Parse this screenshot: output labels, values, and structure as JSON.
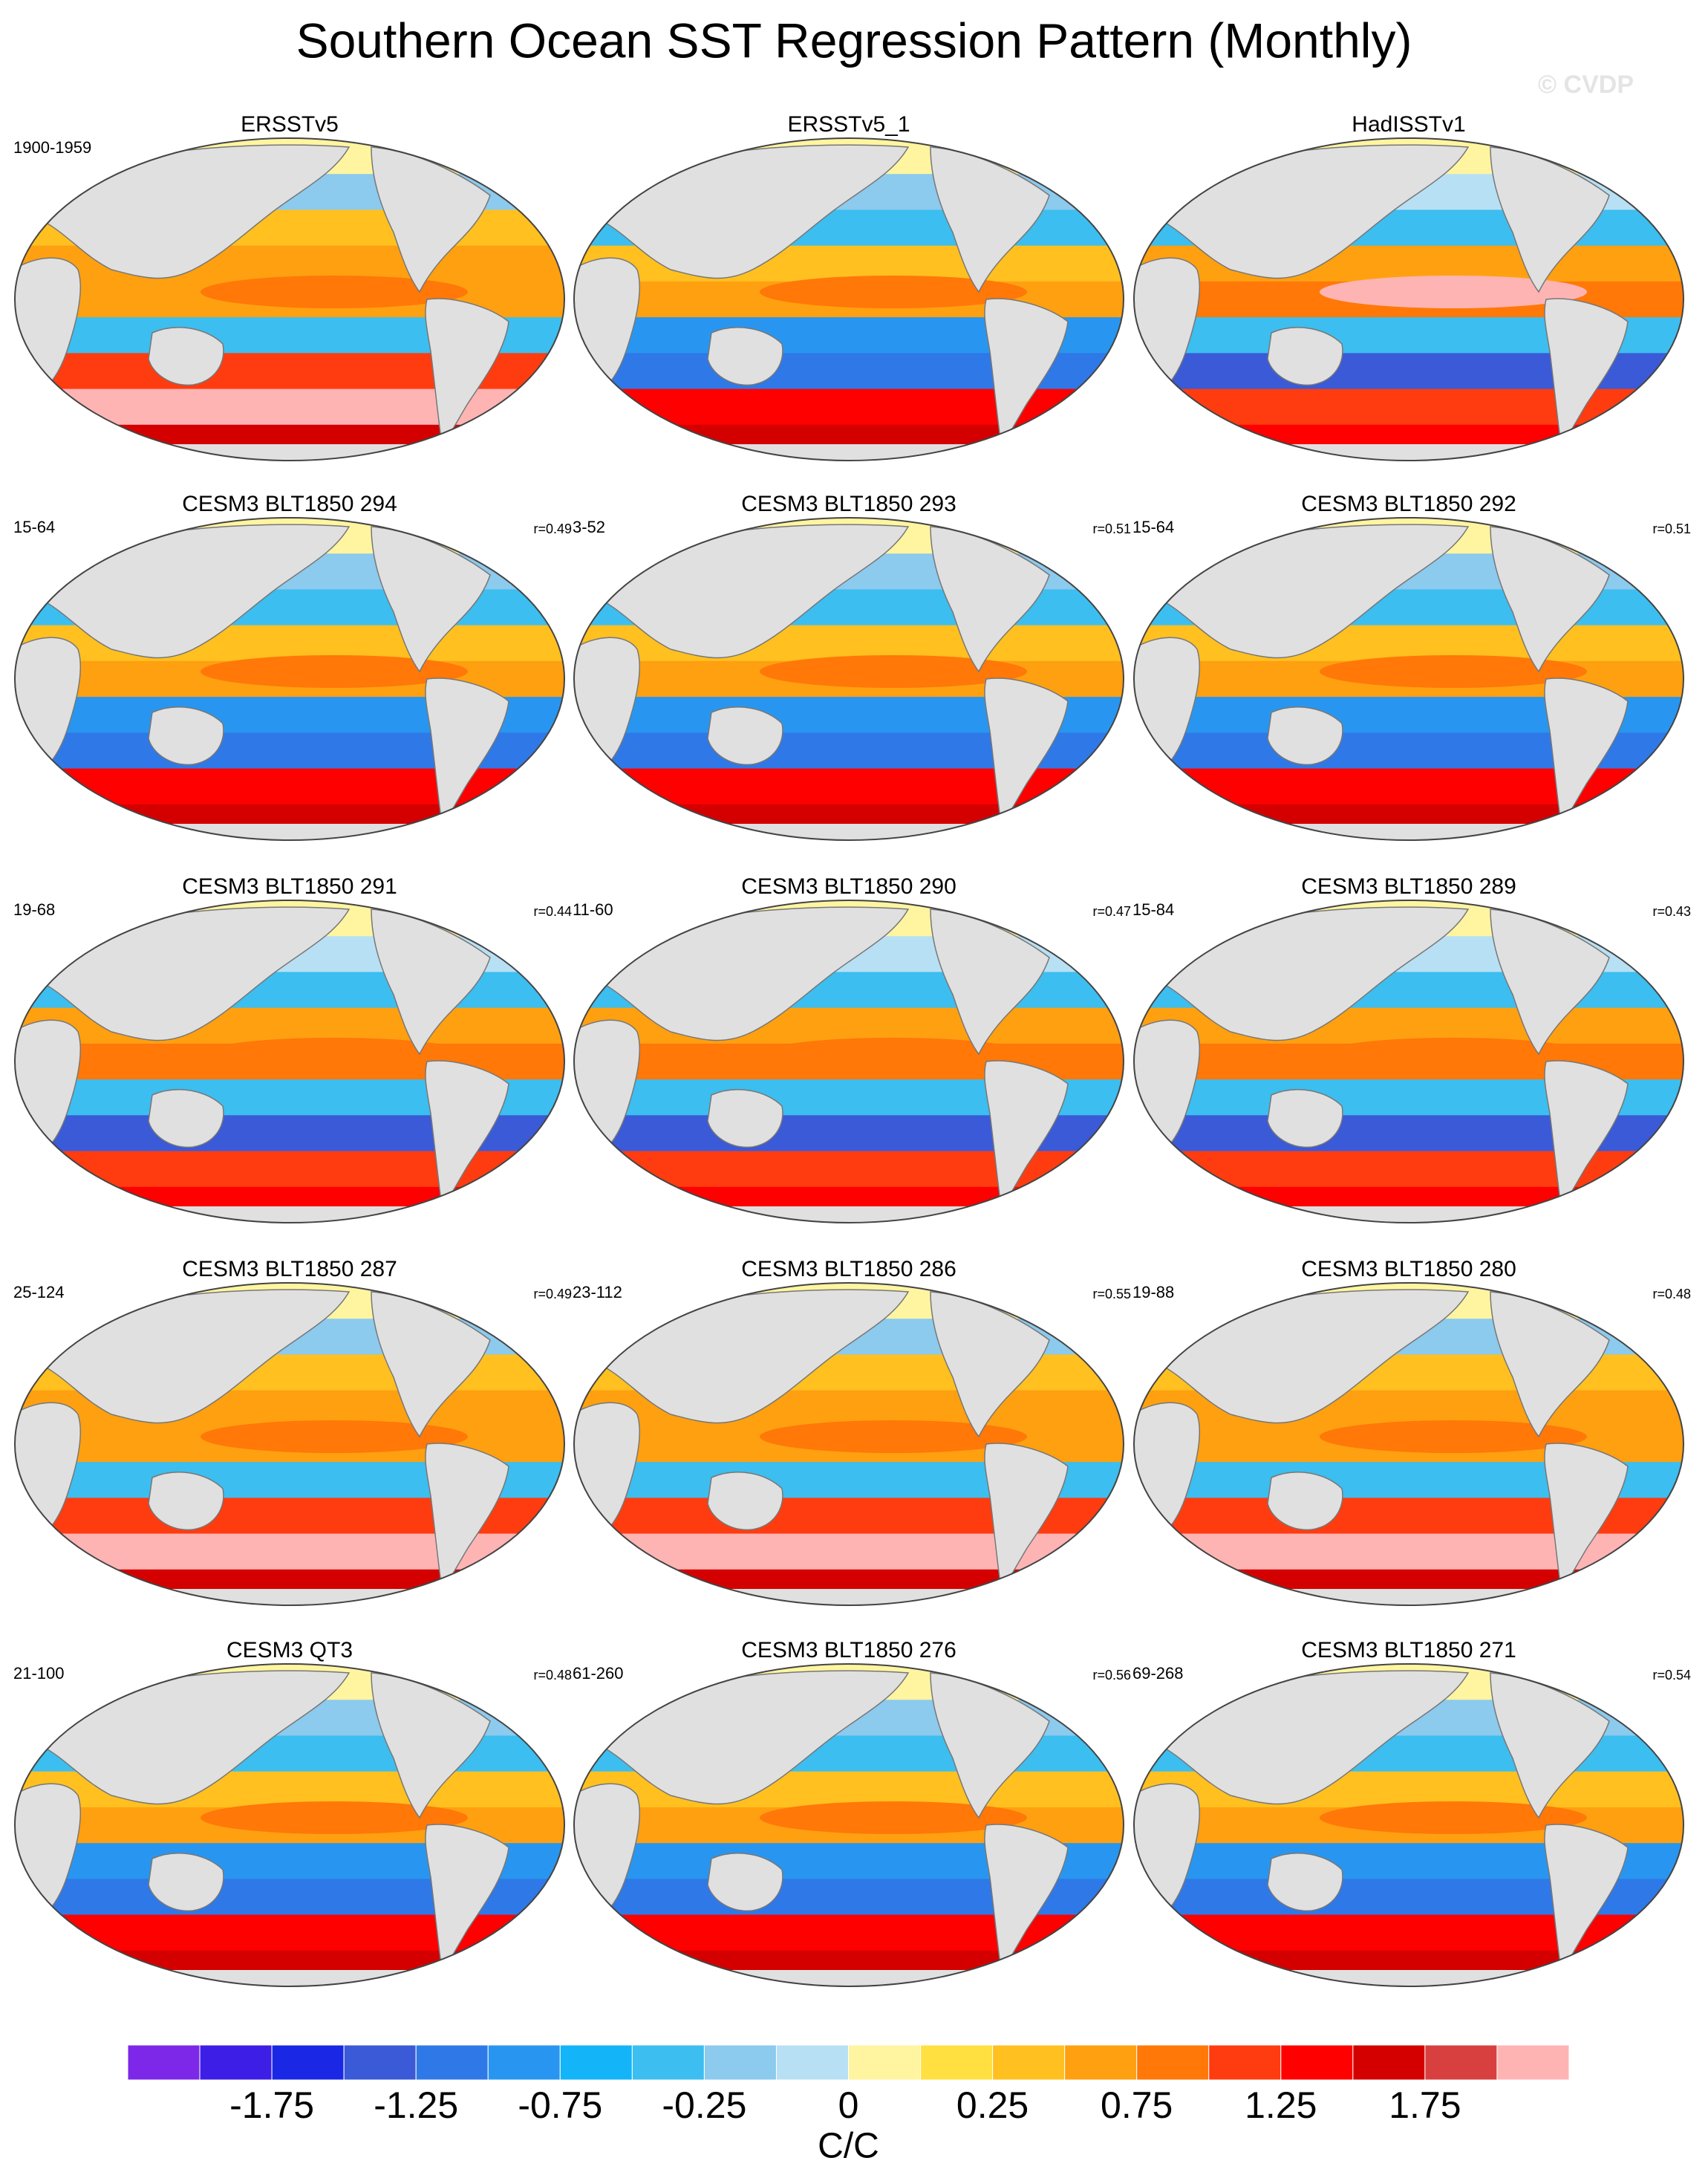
{
  "title": "Southern Ocean SST Regression Pattern (Monthly)",
  "watermark": "© CVDP",
  "panels": [
    {
      "title": "ERSSTv5",
      "period": "1900-1959"
    },
    {
      "title": "ERSSTv5_1"
    },
    {
      "title": "HadISSTv1"
    },
    {
      "title": "CESM3 BLT1850 294",
      "period": "15-64",
      "r": "r=0.49"
    },
    {
      "title": "CESM3 BLT1850 293",
      "period": "3-52",
      "r": "r=0.51"
    },
    {
      "title": "CESM3 BLT1850 292",
      "period": "15-64",
      "r": "r=0.51"
    },
    {
      "title": "CESM3 BLT1850 291",
      "period": "19-68",
      "r": "r=0.44"
    },
    {
      "title": "CESM3 BLT1850 290",
      "period": "11-60",
      "r": "r=0.47"
    },
    {
      "title": "CESM3 BLT1850 289",
      "period": "15-84",
      "r": "r=0.43"
    },
    {
      "title": "CESM3 BLT1850 287",
      "period": "25-124",
      "r": "r=0.49"
    },
    {
      "title": "CESM3 BLT1850 286",
      "period": "23-112",
      "r": "r=0.55"
    },
    {
      "title": "CESM3 BLT1850 280",
      "period": "19-88",
      "r": "r=0.48"
    },
    {
      "title": "CESM3 QT3",
      "period": "21-100",
      "r": "r=0.48"
    },
    {
      "title": "CESM3 BLT1850 276",
      "period": "61-260",
      "r": "r=0.56"
    },
    {
      "title": "CESM3 BLT1850 271",
      "period": "69-268",
      "r": "r=0.54"
    }
  ],
  "colorbar": {
    "colors": [
      "#7d28e8",
      "#3c1ee6",
      "#1a28e6",
      "#3a5ad8",
      "#2f78e8",
      "#2896f0",
      "#14b4f8",
      "#3cbef0",
      "#8ccaee",
      "#b8e0f4",
      "#fff5a0",
      "#ffe040",
      "#ffc020",
      "#ffa010",
      "#ff7808",
      "#ff3c10",
      "#ff0000",
      "#d40000",
      "#d84040",
      "#ffb4b4"
    ],
    "ticks": [
      -1.75,
      -1.25,
      -0.75,
      -0.25,
      0,
      0.25,
      0.75,
      1.25,
      1.75
    ],
    "label": "C/C"
  }
}
